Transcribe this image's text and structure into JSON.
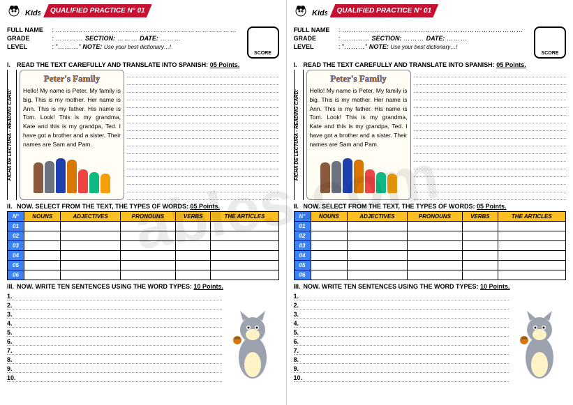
{
  "banner": "QUALIFIED PRACTICE N° 01",
  "labels": {
    "fullName": "FULL NAME",
    "grade": "GRADE",
    "section": "SECTION:",
    "date": "DATE:",
    "level": "LEVEL",
    "note": "NOTE:",
    "noteText": "Use your best dictionary…!",
    "score": "SCORE"
  },
  "sideLabel": "FICHA DE LECTURA - READING CARD:",
  "sections": {
    "s1": {
      "roman": "I.",
      "text": "READ THE TEXT CAREFULLY AND TRANSLATE INTO SPANISH:",
      "pts": "05 Points."
    },
    "s2": {
      "roman": "II.",
      "text": "NOW. SELECT FROM THE TEXT, THE TYPES OF WORDS:",
      "pts": "05 Points."
    },
    "s3": {
      "roman": "III.",
      "text": "NOW. WRITE TEN SENTENCES USING THE WORD TYPES:",
      "pts": "10 Points."
    }
  },
  "story": {
    "title": "Peter's Family",
    "text": "Hello! My name is Peter. My family is big. This is my mother. Her name is Ann. This is my father. His name is Tom. Look! This is my grandma, Kate and this is my grandpa, Ted. I have got a brother and a sister. Their names are Sam and Pam."
  },
  "family": [
    {
      "h": 44,
      "c": "#8b5a3c"
    },
    {
      "h": 46,
      "c": "#6b7280"
    },
    {
      "h": 50,
      "c": "#1e40af"
    },
    {
      "h": 48,
      "c": "#d97706"
    },
    {
      "h": 34,
      "c": "#ef4444"
    },
    {
      "h": 30,
      "c": "#10b981"
    },
    {
      "h": 28,
      "c": "#f59e0b"
    }
  ],
  "table": {
    "headers": [
      "N°",
      "NOUNS",
      "ADJECTIVES",
      "PRONOUNS",
      "VERBS",
      "THE ARTICLES"
    ],
    "rows": [
      "01",
      "02",
      "03",
      "04",
      "05",
      "06"
    ]
  },
  "sentences": [
    "1.",
    "2.",
    "3.",
    "4.",
    "5.",
    "6.",
    "7.",
    "8.",
    "9.",
    "10."
  ],
  "watermark": "ables.com",
  "logoText": "Kids"
}
